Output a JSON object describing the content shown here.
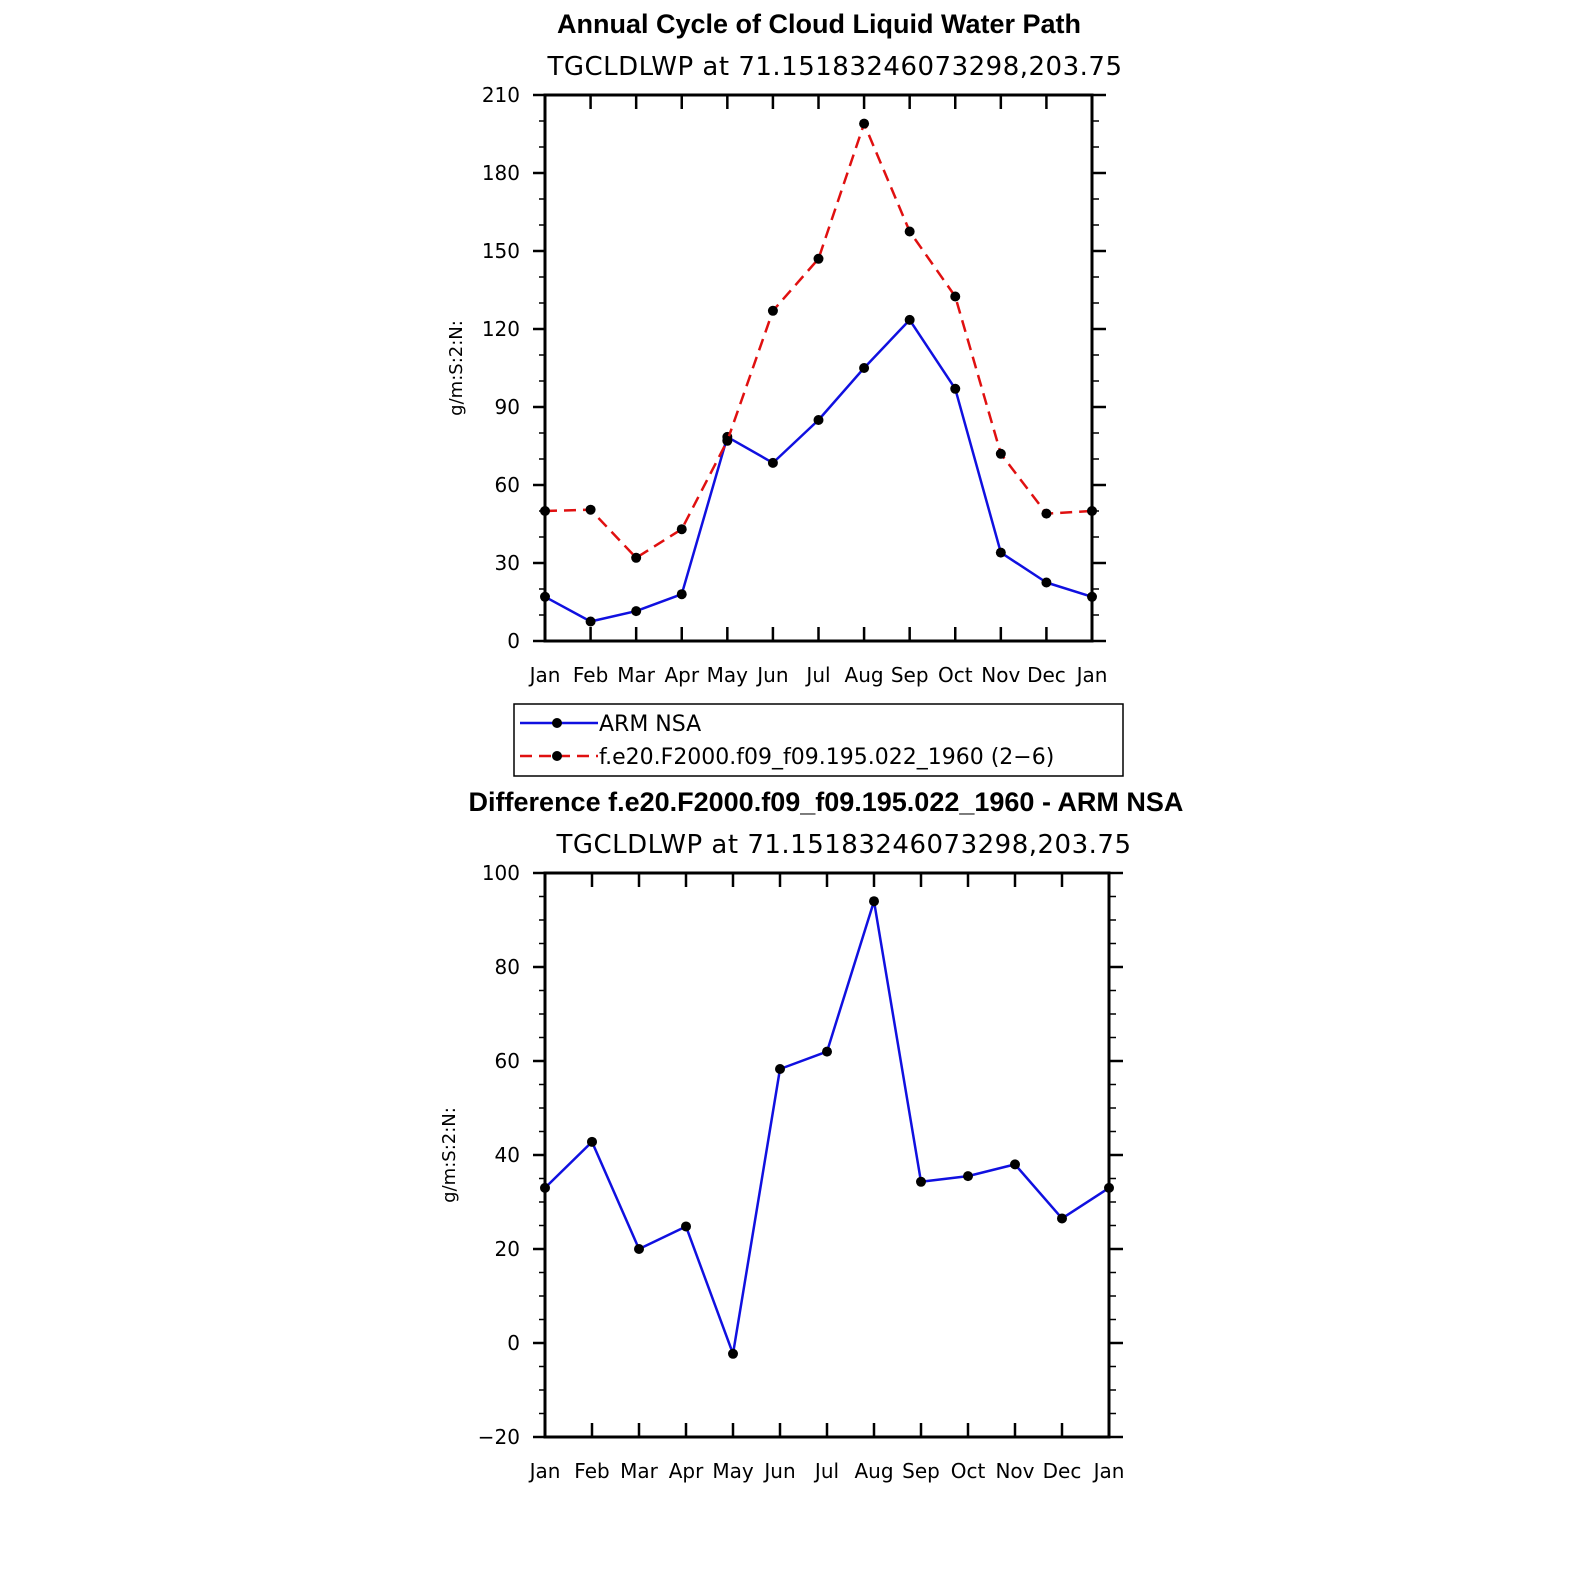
{
  "chart_data": [
    {
      "type": "line",
      "title": "Annual Cycle of Cloud Liquid Water Path",
      "subtitle": "TGCLDLWP at 71.15183246073298,203.75",
      "ylabel": "g/m:S:2:N:",
      "xlabel": "",
      "categories": [
        "Jan",
        "Feb",
        "Mar",
        "Apr",
        "May",
        "Jun",
        "Jul",
        "Aug",
        "Sep",
        "Oct",
        "Nov",
        "Dec",
        "Jan"
      ],
      "ylim": [
        0,
        210
      ],
      "yticks": [
        0,
        30,
        60,
        90,
        120,
        150,
        180,
        210
      ],
      "ytick_labels": [
        "0",
        "30",
        "60",
        "90",
        "120",
        "150",
        "180",
        "210"
      ],
      "series": [
        {
          "name": "ARM NSA",
          "color": "#1010e0",
          "dash": "solid",
          "values": [
            17,
            7.5,
            11.5,
            18,
            78.5,
            68.5,
            85,
            105,
            123.5,
            97,
            34,
            22.5,
            17
          ]
        },
        {
          "name": "f.e20.F2000.f09_f09.195.022_1960 (2-6)",
          "color": "#e01010",
          "dash": "dashed",
          "values": [
            50,
            50.5,
            32,
            43,
            77,
            127,
            147,
            199,
            157.5,
            132.5,
            72,
            49,
            50
          ]
        }
      ],
      "legend": {
        "position": "below",
        "entries": [
          "ARM NSA",
          "f.e20.F2000.f09_f09.195.022_1960 (2−6)"
        ]
      }
    },
    {
      "type": "line",
      "title": "Difference f.e20.F2000.f09_f09.195.022_1960 - ARM NSA",
      "subtitle": "TGCLDLWP at 71.15183246073298,203.75",
      "ylabel": "g/m:S:2:N:",
      "xlabel": "",
      "categories": [
        "Jan",
        "Feb",
        "Mar",
        "Apr",
        "May",
        "Jun",
        "Jul",
        "Aug",
        "Sep",
        "Oct",
        "Nov",
        "Dec",
        "Jan"
      ],
      "ylim": [
        -20,
        100
      ],
      "yticks": [
        -20,
        0,
        20,
        40,
        60,
        80,
        100
      ],
      "ytick_labels": [
        "−20",
        "0",
        "20",
        "40",
        "60",
        "80",
        "100"
      ],
      "series": [
        {
          "name": "Difference",
          "color": "#1010e0",
          "dash": "solid",
          "values": [
            33,
            42.8,
            20,
            24.8,
            -2.3,
            58.3,
            62,
            94,
            34.3,
            35.5,
            38,
            26.5,
            33
          ]
        }
      ]
    }
  ]
}
